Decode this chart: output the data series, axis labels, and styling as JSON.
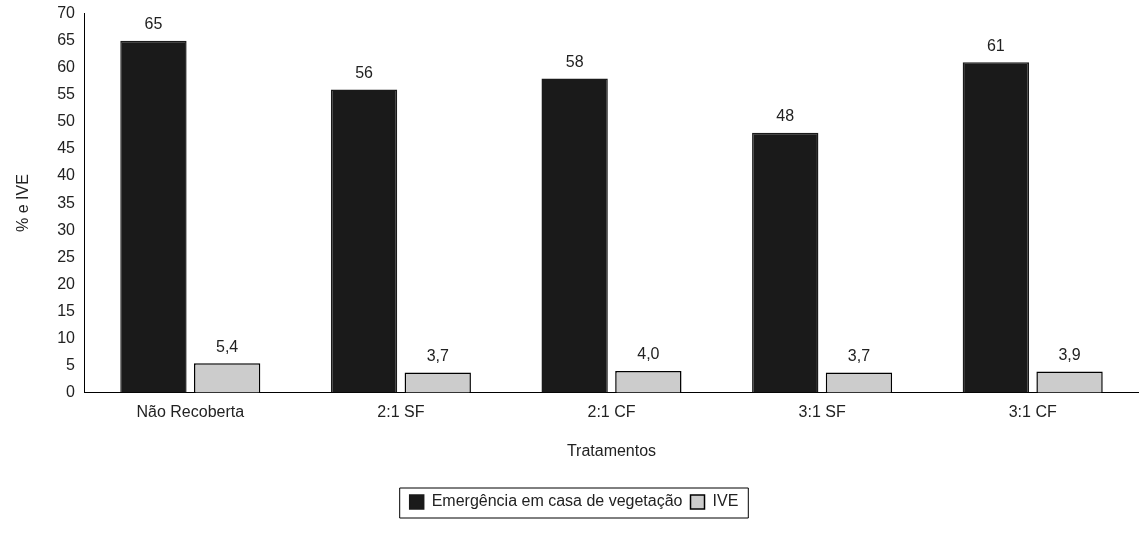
{
  "chart_data": {
    "type": "bar",
    "xlabel": "Tratamentos",
    "ylabel": "% e IVE",
    "categories": [
      "Não Recoberta",
      "2:1 SF",
      "2:1 CF",
      "3:1 SF",
      "3:1 CF"
    ],
    "series": [
      {
        "name": "Emergência em casa de vegetação",
        "color": "#1a1a1a",
        "values": [
          65,
          56,
          58,
          48,
          61
        ],
        "value_labels": [
          "65",
          "56",
          "58",
          "48",
          "61"
        ]
      },
      {
        "name": "IVE",
        "color": "#cccccc",
        "values": [
          5.4,
          3.7,
          4.0,
          3.7,
          3.9
        ],
        "value_labels": [
          "5,4",
          "3,7",
          "4,0",
          "3,7",
          "3,9"
        ]
      }
    ],
    "ylim": [
      0,
      70
    ],
    "yticks": [
      0,
      5,
      10,
      15,
      20,
      25,
      30,
      35,
      40,
      45,
      50,
      55,
      60,
      65,
      70
    ],
    "grid": false,
    "legend": "bottom"
  }
}
